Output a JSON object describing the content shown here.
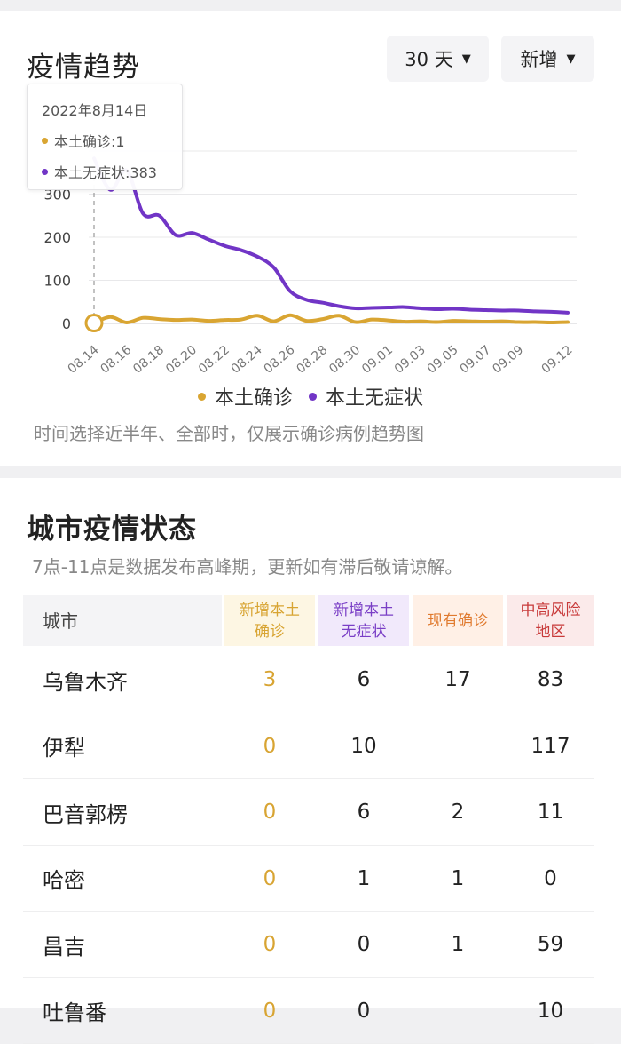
{
  "trend": {
    "title": "疫情趋势",
    "range_label": "30 天",
    "mode_label": "新增",
    "tooltip": {
      "date": "2022年8月14日",
      "confirmed_text": "本土确诊:1",
      "asymptomatic_text": "本土无症状:383"
    },
    "note": "时间选择近半年、全部时，仅展示确诊病例趋势图"
  },
  "chart_data": {
    "type": "line",
    "title": "",
    "xlabel": "",
    "ylabel": "",
    "ylim": [
      0,
      400
    ],
    "yticks": [
      "0",
      "100",
      "200",
      "300"
    ],
    "xtick_labels": [
      "08.14",
      "08.16",
      "08.18",
      "08.20",
      "08.22",
      "08.24",
      "08.26",
      "08.28",
      "08.30",
      "09.01",
      "09.03",
      "09.05",
      "09.07",
      "09.09",
      "09.12"
    ],
    "x": [
      "08.14",
      "08.15",
      "08.16",
      "08.17",
      "08.18",
      "08.19",
      "08.20",
      "08.21",
      "08.22",
      "08.23",
      "08.24",
      "08.25",
      "08.26",
      "08.27",
      "08.28",
      "08.29",
      "08.30",
      "08.31",
      "09.01",
      "09.02",
      "09.03",
      "09.04",
      "09.05",
      "09.06",
      "09.07",
      "09.08",
      "09.09",
      "09.10",
      "09.11",
      "09.12"
    ],
    "grid": true,
    "legend_position": "bottom",
    "series": [
      {
        "name": "本土确诊",
        "color": "#d9a532",
        "values": [
          1,
          15,
          2,
          13,
          10,
          8,
          9,
          6,
          8,
          9,
          18,
          5,
          19,
          6,
          10,
          18,
          3,
          9,
          7,
          4,
          5,
          3,
          6,
          5,
          4,
          5,
          3,
          3,
          2,
          3
        ]
      },
      {
        "name": "本土无症状",
        "color": "#7135c6",
        "values": [
          383,
          310,
          355,
          255,
          250,
          205,
          210,
          195,
          180,
          170,
          155,
          130,
          75,
          55,
          48,
          40,
          35,
          36,
          37,
          38,
          35,
          33,
          34,
          32,
          31,
          30,
          30,
          28,
          27,
          25
        ]
      }
    ]
  },
  "city": {
    "title": "城市疫情状态",
    "note": "7点-11点是数据发布高峰期，更新如有滞后敬请谅解。",
    "headers": {
      "city": "城市",
      "c1": "新增本土\n确诊",
      "c2": "新增本土\n无症状",
      "c3": "现有确诊",
      "c4": "中高风险\n地区"
    },
    "rows": [
      {
        "city": "乌鲁木齐",
        "c1": "3",
        "c2": "6",
        "c3": "17",
        "c4": "83"
      },
      {
        "city": "伊犁",
        "c1": "0",
        "c2": "10",
        "c3": "",
        "c4": "117"
      },
      {
        "city": "巴音郭楞",
        "c1": "0",
        "c2": "6",
        "c3": "2",
        "c4": "11"
      },
      {
        "city": "哈密",
        "c1": "0",
        "c2": "1",
        "c3": "1",
        "c4": "0"
      },
      {
        "city": "昌吉",
        "c1": "0",
        "c2": "0",
        "c3": "1",
        "c4": "59"
      },
      {
        "city": "吐鲁番",
        "c1": "0",
        "c2": "0",
        "c3": "",
        "c4": "10"
      }
    ]
  }
}
